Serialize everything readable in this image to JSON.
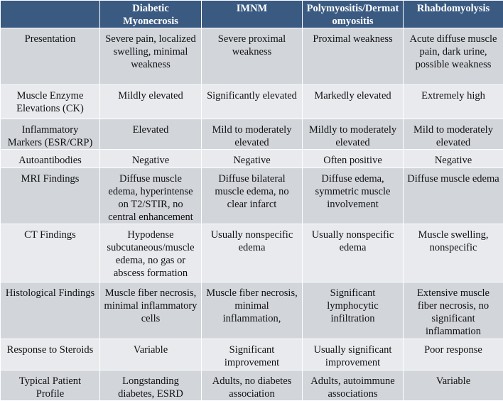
{
  "table": {
    "header": [
      "",
      "Diabetic Myonecrosis",
      "IMNM",
      "Polymyositis/Dermatomyositis",
      "Rhabdomyolysis"
    ],
    "rows": [
      [
        "Presentation",
        "Severe pain, localized swelling, minimal weakness",
        "Severe proximal weakness",
        "Proximal weakness",
        "Acute diffuse muscle pain, dark urine, possible weakness"
      ],
      [
        "Muscle Enzyme Elevations (CK)",
        "Mildly elevated",
        "Significantly elevated",
        "Markedly elevated",
        "Extremely high"
      ],
      [
        "Inflammatory Markers (ESR/CRP)",
        "Elevated",
        "Mild to moderately elevated",
        "Mildly to moderately elevated",
        "Mild to moderately elevated"
      ],
      [
        "Autoantibodies",
        "Negative",
        "Negative",
        "Often positive",
        "Negative"
      ],
      [
        "MRI Findings",
        "Diffuse muscle edema, hyperintense on T2/STIR, no central enhancement",
        "Diffuse bilateral muscle edema, no clear infarct",
        "Diffuse edema, symmetric muscle involvement",
        "Diffuse muscle edema"
      ],
      [
        "CT Findings",
        "Hypodense subcutaneous/muscle edema, no gas or abscess formation",
        "Usually nonspecific edema",
        "Usually nonspecific edema",
        "Muscle swelling, nonspecific"
      ],
      [
        "Histological Findings",
        "Muscle fiber necrosis, minimal inflammatory cells",
        "Muscle fiber necrosis, minimal inflammation,",
        "Significant lymphocytic infiltration",
        "Extensive muscle fiber necrosis, no significant inflammation"
      ],
      [
        "Response to Steroids",
        "Variable",
        "Significant improvement",
        "Usually significant improvement",
        "Poor response"
      ],
      [
        "Typical Patient Profile",
        "Longstanding diabetes, ESRD",
        "Adults, no diabetes association",
        "Adults, autoimmune associations",
        "Variable"
      ]
    ]
  }
}
